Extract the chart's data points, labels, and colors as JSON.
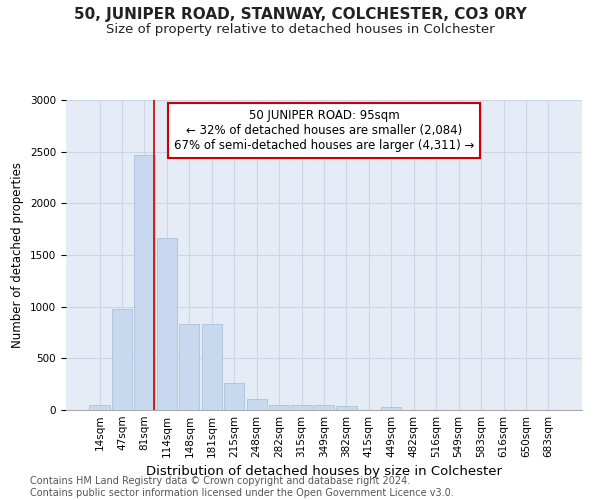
{
  "title": "50, JUNIPER ROAD, STANWAY, COLCHESTER, CO3 0RY",
  "subtitle": "Size of property relative to detached houses in Colchester",
  "xlabel": "Distribution of detached houses by size in Colchester",
  "ylabel": "Number of detached properties",
  "categories": [
    "14sqm",
    "47sqm",
    "81sqm",
    "114sqm",
    "148sqm",
    "181sqm",
    "215sqm",
    "248sqm",
    "282sqm",
    "315sqm",
    "349sqm",
    "382sqm",
    "415sqm",
    "449sqm",
    "482sqm",
    "516sqm",
    "549sqm",
    "583sqm",
    "616sqm",
    "650sqm",
    "683sqm"
  ],
  "values": [
    50,
    980,
    2470,
    1660,
    830,
    830,
    260,
    110,
    50,
    50,
    50,
    40,
    0,
    30,
    0,
    0,
    0,
    0,
    0,
    0,
    0
  ],
  "bar_color": "#c8d8ee",
  "bar_edge_color": "#a0bcd8",
  "vline_x": 2.42,
  "vline_color": "#cc0000",
  "annotation_line1": "50 JUNIPER ROAD: 95sqm",
  "annotation_line2": "← 32% of detached houses are smaller (2,084)",
  "annotation_line3": "67% of semi-detached houses are larger (4,311) →",
  "annotation_box_color": "#cc0000",
  "annotation_bg": "#ffffff",
  "ylim": [
    0,
    3000
  ],
  "yticks": [
    0,
    500,
    1000,
    1500,
    2000,
    2500,
    3000
  ],
  "grid_color": "#cdd6e8",
  "bg_color": "#e6ecf5",
  "footer": "Contains HM Land Registry data © Crown copyright and database right 2024.\nContains public sector information licensed under the Open Government Licence v3.0.",
  "title_fontsize": 11,
  "subtitle_fontsize": 9.5,
  "xlabel_fontsize": 9.5,
  "ylabel_fontsize": 8.5,
  "tick_fontsize": 7.5,
  "annotation_fontsize": 8.5,
  "footer_fontsize": 7
}
